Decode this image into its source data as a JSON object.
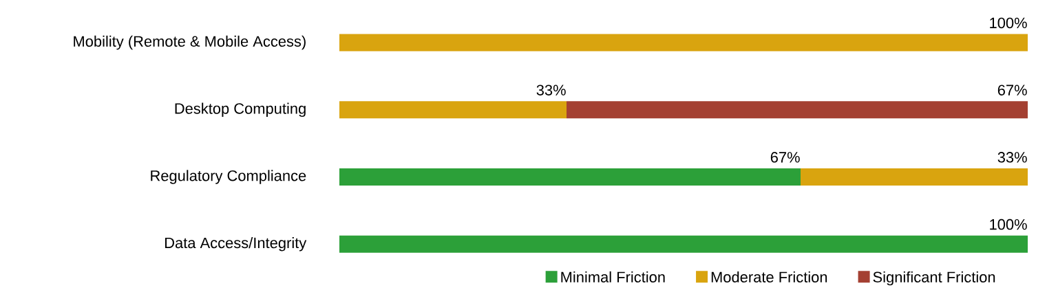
{
  "chart_data": {
    "type": "bar",
    "orientation": "horizontal",
    "stacked": true,
    "categories": [
      "Mobility (Remote & Mobile Access)",
      "Desktop Computing",
      "Regulatory Compliance",
      "Data Access/Integrity"
    ],
    "series": [
      {
        "name": "Minimal Friction",
        "color": "#2ca039",
        "values": [
          0,
          0,
          67,
          100
        ],
        "value_labels": [
          null,
          null,
          "67%",
          "100%"
        ]
      },
      {
        "name": "Moderate Friction",
        "color": "#d9a40f",
        "values": [
          100,
          33,
          33,
          0
        ],
        "value_labels": [
          "100%",
          "33%",
          "33%",
          null
        ]
      },
      {
        "name": "Significant Friction",
        "color": "#a44032",
        "values": [
          0,
          67,
          0,
          0
        ],
        "value_labels": [
          null,
          "67%",
          null,
          null
        ]
      }
    ],
    "xlim": [
      0,
      100
    ],
    "tick_labels": "y",
    "legend": "bottom right"
  }
}
